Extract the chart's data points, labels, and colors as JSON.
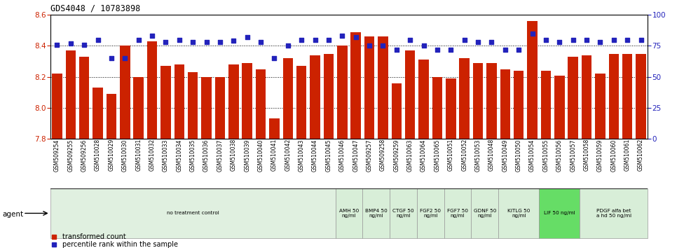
{
  "title": "GDS4048 / 10783898",
  "ylim_left": [
    7.8,
    8.6
  ],
  "yticks_left": [
    7.8,
    8.0,
    8.2,
    8.4,
    8.6
  ],
  "yticks_right": [
    0,
    25,
    50,
    75,
    100
  ],
  "ylim_right": [
    0,
    100
  ],
  "samples": [
    "GSM509254",
    "GSM509255",
    "GSM509256",
    "GSM510028",
    "GSM510029",
    "GSM510030",
    "GSM510031",
    "GSM510032",
    "GSM510033",
    "GSM510034",
    "GSM510035",
    "GSM510036",
    "GSM510037",
    "GSM510038",
    "GSM510039",
    "GSM510040",
    "GSM510041",
    "GSM510042",
    "GSM510043",
    "GSM510044",
    "GSM510045",
    "GSM510046",
    "GSM510047",
    "GSM509257",
    "GSM509258",
    "GSM509259",
    "GSM510063",
    "GSM510064",
    "GSM510065",
    "GSM510051",
    "GSM510052",
    "GSM510053",
    "GSM510048",
    "GSM510049",
    "GSM510050",
    "GSM510054",
    "GSM510055",
    "GSM510056",
    "GSM510057",
    "GSM510058",
    "GSM510059",
    "GSM510060",
    "GSM510061",
    "GSM510062"
  ],
  "bar_values": [
    8.22,
    8.37,
    8.33,
    8.13,
    8.09,
    8.4,
    8.2,
    8.43,
    8.27,
    8.28,
    8.23,
    8.2,
    8.2,
    8.28,
    8.29,
    8.25,
    7.93,
    8.32,
    8.27,
    8.34,
    8.35,
    8.4,
    8.49,
    8.46,
    8.46,
    8.16,
    8.37,
    8.31,
    8.2,
    8.19,
    8.32,
    8.29,
    8.29,
    8.25,
    8.24,
    8.56,
    8.24,
    8.21,
    8.33,
    8.34,
    8.22,
    8.35,
    8.35,
    8.35
  ],
  "percentile_values": [
    76,
    77,
    76,
    80,
    65,
    65,
    80,
    83,
    78,
    80,
    78,
    78,
    78,
    79,
    82,
    78,
    65,
    75,
    80,
    80,
    80,
    83,
    82,
    75,
    75,
    72,
    80,
    75,
    72,
    72,
    80,
    78,
    78,
    72,
    72,
    85,
    80,
    78,
    80,
    80,
    78,
    80,
    80,
    80
  ],
  "bar_color": "#cc2200",
  "dot_color": "#2222bb",
  "grid_color": "#555555",
  "groups": [
    {
      "label": "no treatment control",
      "start": 0,
      "end": 21,
      "color": "#e0f0e0"
    },
    {
      "label": "AMH 50\nng/ml",
      "start": 21,
      "end": 23,
      "color": "#d8eed8"
    },
    {
      "label": "BMP4 50\nng/ml",
      "start": 23,
      "end": 25,
      "color": "#d8eed8"
    },
    {
      "label": "CTGF 50\nng/ml",
      "start": 25,
      "end": 27,
      "color": "#d8eed8"
    },
    {
      "label": "FGF2 50\nng/ml",
      "start": 27,
      "end": 29,
      "color": "#d8eed8"
    },
    {
      "label": "FGF7 50\nng/ml",
      "start": 29,
      "end": 31,
      "color": "#d8eed8"
    },
    {
      "label": "GDNF 50\nng/ml",
      "start": 31,
      "end": 33,
      "color": "#d8eed8"
    },
    {
      "label": "KITLG 50\nng/ml",
      "start": 33,
      "end": 36,
      "color": "#d8eed8"
    },
    {
      "label": "LIF 50 ng/ml",
      "start": 36,
      "end": 39,
      "color": "#66dd66"
    },
    {
      "label": "PDGF alfa bet\na hd 50 ng/ml",
      "start": 39,
      "end": 44,
      "color": "#d8eed8"
    }
  ],
  "fig_width": 9.96,
  "fig_height": 3.54,
  "dpi": 100
}
